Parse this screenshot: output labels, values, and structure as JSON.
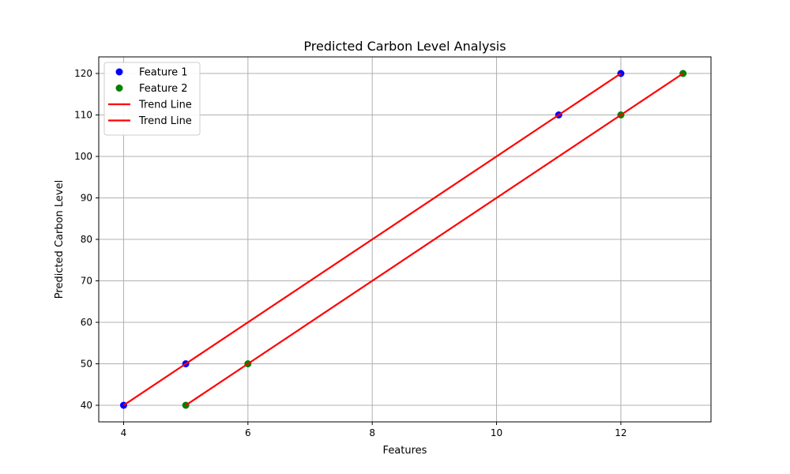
{
  "chart_data": {
    "type": "scatter",
    "title": "Predicted Carbon Level Analysis",
    "xlabel": "Features",
    "ylabel": "Predicted Carbon Level",
    "xlim": [
      3.6,
      13.45
    ],
    "ylim": [
      36,
      124
    ],
    "xticks": [
      4,
      6,
      8,
      10,
      12
    ],
    "yticks": [
      40,
      50,
      60,
      70,
      80,
      90,
      100,
      110,
      120
    ],
    "grid": true,
    "legend_position": "top-left",
    "series": [
      {
        "name": "Feature 1",
        "kind": "scatter",
        "color": "#0000ff",
        "points": [
          [
            4,
            40
          ],
          [
            5,
            50
          ],
          [
            11,
            110
          ],
          [
            12,
            120
          ]
        ]
      },
      {
        "name": "Feature 2",
        "kind": "scatter",
        "color": "#008000",
        "points": [
          [
            5,
            40
          ],
          [
            6,
            50
          ],
          [
            12,
            110
          ],
          [
            13,
            120
          ]
        ]
      },
      {
        "name": "Trend Line",
        "kind": "line",
        "color": "#ff0000",
        "points": [
          [
            4,
            40
          ],
          [
            5,
            50
          ],
          [
            11,
            110
          ],
          [
            12,
            120
          ]
        ]
      },
      {
        "name": "Trend Line",
        "kind": "line",
        "color": "#ff0000",
        "points": [
          [
            5,
            40
          ],
          [
            6,
            50
          ],
          [
            12,
            110
          ],
          [
            13,
            120
          ]
        ]
      }
    ]
  }
}
